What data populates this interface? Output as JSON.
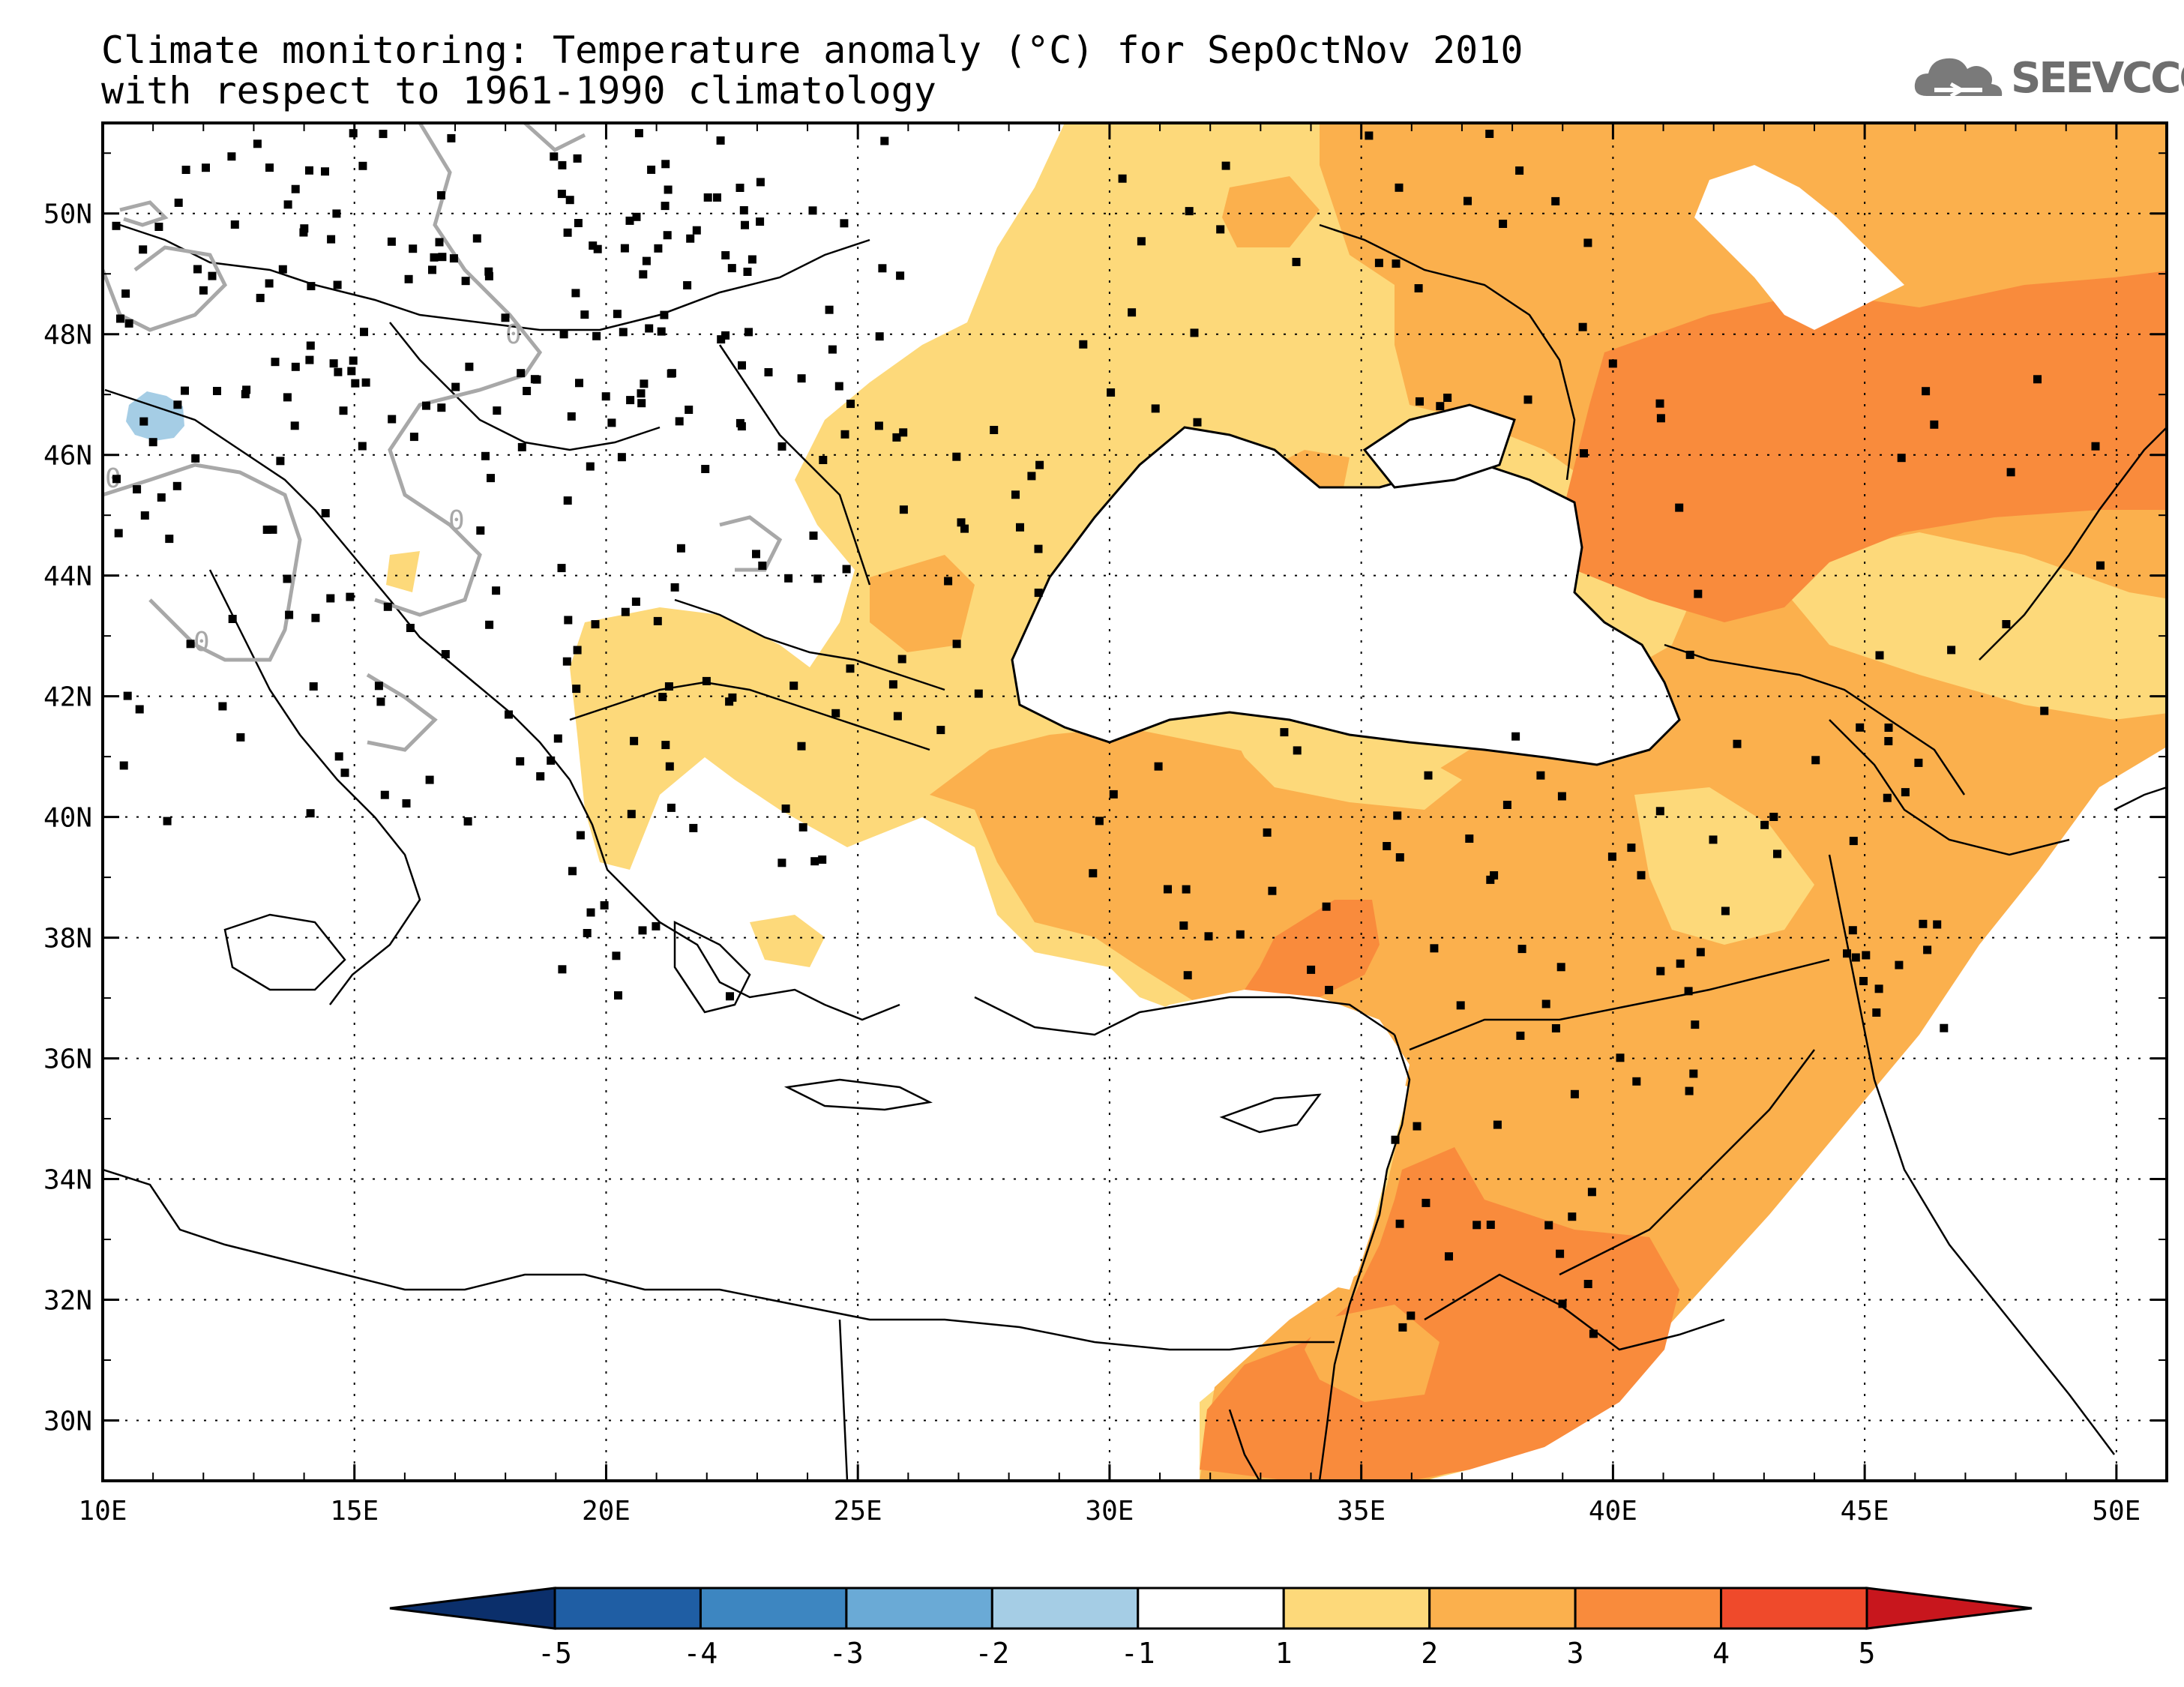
{
  "title": {
    "line1": "Climate monitoring: Temperature anomaly (°C) for SepOctNov 2010",
    "line2": "with respect to 1961-1990 climatology"
  },
  "logo": {
    "text": "SEEVCCC",
    "icon": "cloud-icon"
  },
  "map": {
    "x_axis": {
      "range": [
        10,
        51
      ],
      "ticks": [
        "10E",
        "15E",
        "20E",
        "25E",
        "30E",
        "35E",
        "40E",
        "45E",
        "50E"
      ]
    },
    "y_axis": {
      "range": [
        29,
        51.5
      ],
      "ticks": [
        "30N",
        "32N",
        "34N",
        "36N",
        "38N",
        "40N",
        "42N",
        "44N",
        "46N",
        "48N",
        "50N"
      ]
    },
    "grid": "dotted",
    "contour_label": "0"
  },
  "colorbar": {
    "labels": [
      "-5",
      "-4",
      "-3",
      "-2",
      "-1",
      "1",
      "2",
      "3",
      "4",
      "5"
    ],
    "colors": [
      "#0b2f6b",
      "#1f5ea4",
      "#3d86c1",
      "#6aaad6",
      "#a5cde5",
      "#ffffff",
      "#fdd97a",
      "#fbb04d",
      "#f98b3c",
      "#ef4a2b",
      "#c8161d"
    ]
  },
  "anomaly_colors": {
    "1-2": "#fdd97a",
    "2-3": "#fbb04d",
    "3-4": "#f98b3c",
    "-2--1": "#a5cde5"
  }
}
